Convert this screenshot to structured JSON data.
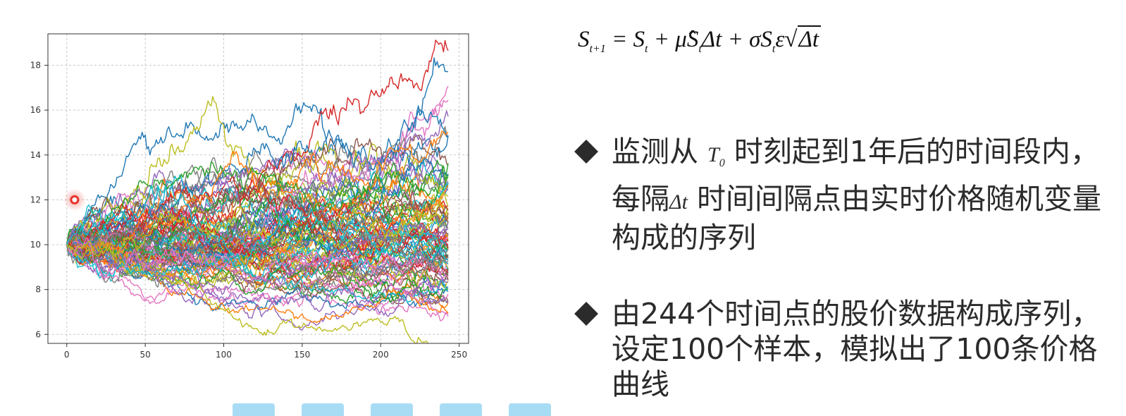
{
  "chart_data": {
    "type": "line",
    "title": "",
    "xlabel": "",
    "ylabel": "",
    "xlim": [
      -12,
      256
    ],
    "ylim": [
      5.6,
      19.4
    ],
    "xticks": [
      0,
      50,
      100,
      150,
      200,
      250
    ],
    "yticks": [
      6,
      8,
      10,
      12,
      14,
      16,
      18
    ],
    "grid": true,
    "n_series": 100,
    "n_steps": 244,
    "start_value": 10,
    "series_colors": [
      "#1f77b4",
      "#ff7f0e",
      "#2ca02c",
      "#d62728",
      "#9467bd",
      "#8c564b",
      "#e377c2",
      "#7f7f7f",
      "#bcbd22",
      "#17becf"
    ],
    "marker": {
      "x": 5,
      "y": 12,
      "color": "#e8332a"
    }
  },
  "formula": {
    "S": "S",
    "t1": "t+1",
    "eq": " = ",
    "St": "S",
    "t": "t",
    "plus": " + ",
    "mu": "μ̂",
    "S2": "S",
    "delta_t": "Δt",
    "sigma": "σ",
    "S3": "S",
    "eps": "ε",
    "sqrt_dt": "Δt"
  },
  "bullets": [
    {
      "pre": "监测从 ",
      "math": "T",
      "math_sub": "0",
      "post": " 时刻起到1年后的时间段内，每隔",
      "math2": "Δt",
      "post2": " 时间间隔点由实时价格随机变量构成的序列"
    },
    {
      "text": "由244个时间点的股价数据构成序列，设定100个样本，模拟出了100条价格曲线"
    }
  ]
}
